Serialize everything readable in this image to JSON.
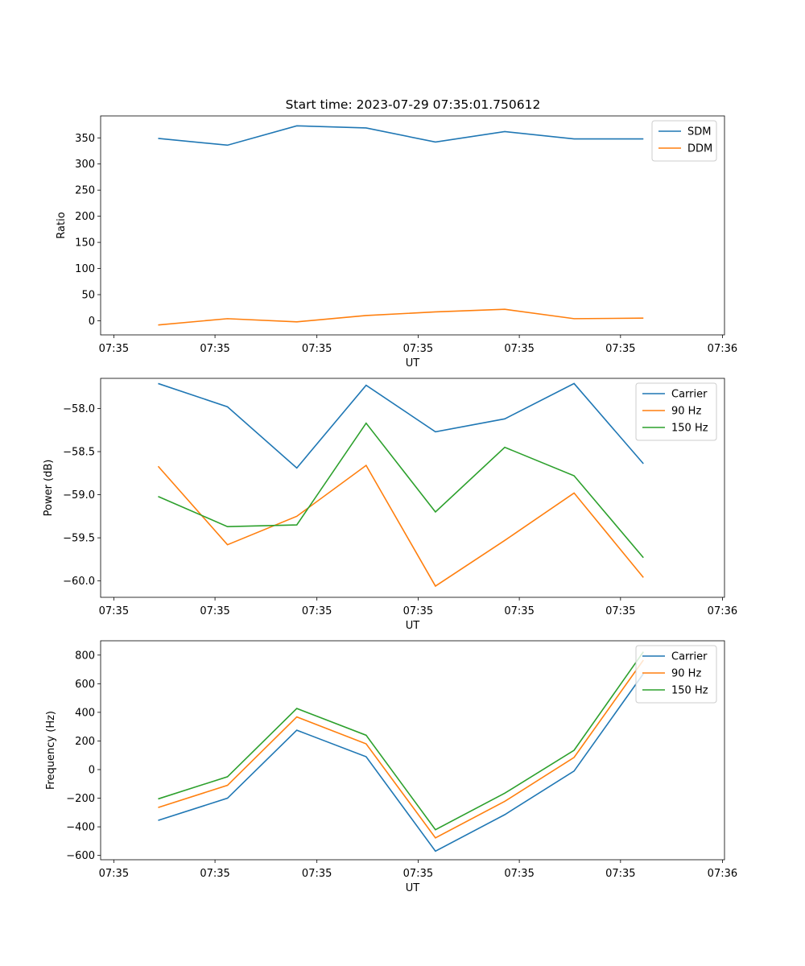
{
  "figure_title": "Start time: 2023-07-29 07:35:01.750612",
  "chart_data": [
    {
      "type": "line",
      "title": "Start time: 2023-07-29 07:35:01.750612",
      "xlabel": "UT",
      "ylabel": "Ratio",
      "x_index": [
        1,
        2,
        3,
        4,
        5,
        6,
        7,
        8
      ],
      "xlim": [
        0.17,
        9.17
      ],
      "xticks": [
        0.36,
        1.82,
        3.29,
        4.75,
        6.21,
        7.67,
        9.14
      ],
      "xtick_labels": [
        "07:35",
        "07:35",
        "07:35",
        "07:35",
        "07:35",
        "07:35",
        "07:36"
      ],
      "ylim": [
        -27,
        392
      ],
      "yticks": [
        0,
        50,
        100,
        150,
        200,
        250,
        300,
        350
      ],
      "ytick_labels": [
        "0",
        "50",
        "100",
        "150",
        "200",
        "250",
        "300",
        "350"
      ],
      "legend_position": "upper-right",
      "series": [
        {
          "name": "SDM",
          "color": "#1f77b4",
          "values": [
            349,
            336,
            373,
            369,
            342,
            362,
            348,
            348
          ]
        },
        {
          "name": "DDM",
          "color": "#ff7f0e",
          "values": [
            -8,
            4,
            -2,
            10,
            17,
            22,
            4,
            5
          ]
        }
      ]
    },
    {
      "type": "line",
      "title": "",
      "xlabel": "UT",
      "ylabel": "Power (dB)",
      "x_index": [
        1,
        2,
        3,
        4,
        5,
        6,
        7,
        8
      ],
      "xlim": [
        0.17,
        9.17
      ],
      "xticks": [
        0.36,
        1.82,
        3.29,
        4.75,
        6.21,
        7.67,
        9.14
      ],
      "xtick_labels": [
        "07:35",
        "07:35",
        "07:35",
        "07:35",
        "07:35",
        "07:35",
        "07:36"
      ],
      "ylim": [
        -60.19,
        -57.65
      ],
      "yticks": [
        -60.0,
        -59.5,
        -59.0,
        -58.5,
        -58.0
      ],
      "ytick_labels": [
        "−60.0",
        "−59.5",
        "−59.0",
        "−58.5",
        "−58.0"
      ],
      "legend_position": "upper-right",
      "series": [
        {
          "name": "Carrier",
          "color": "#1f77b4",
          "values": [
            -57.71,
            -57.98,
            -58.69,
            -57.73,
            -58.27,
            -58.12,
            -57.71,
            -58.64
          ]
        },
        {
          "name": "90 Hz",
          "color": "#ff7f0e",
          "values": [
            -58.67,
            -59.58,
            -59.25,
            -58.66,
            -60.06,
            -59.53,
            -58.98,
            -59.96
          ]
        },
        {
          "name": "150 Hz",
          "color": "#2ca02c",
          "values": [
            -59.02,
            -59.37,
            -59.35,
            -58.17,
            -59.2,
            -58.45,
            -58.78,
            -59.73
          ]
        }
      ]
    },
    {
      "type": "line",
      "title": "",
      "xlabel": "UT",
      "ylabel": "Frequency (Hz)",
      "x_index": [
        1,
        2,
        3,
        4,
        5,
        6,
        7,
        8
      ],
      "xlim": [
        0.17,
        9.17
      ],
      "xticks": [
        0.36,
        1.82,
        3.29,
        4.75,
        6.21,
        7.67,
        9.14
      ],
      "xtick_labels": [
        "07:35",
        "07:35",
        "07:35",
        "07:35",
        "07:35",
        "07:35",
        "07:36"
      ],
      "ylim": [
        -630,
        900
      ],
      "yticks": [
        -600,
        -400,
        -200,
        0,
        200,
        400,
        600,
        800
      ],
      "ytick_labels": [
        "−600",
        "−400",
        "−200",
        "0",
        "200",
        "400",
        "600",
        "800"
      ],
      "legend_position": "upper-right",
      "series": [
        {
          "name": "Carrier",
          "color": "#1f77b4",
          "values": [
            -355,
            -200,
            275,
            90,
            -570,
            -315,
            -10,
            670
          ]
        },
        {
          "name": "90 Hz",
          "color": "#ff7f0e",
          "values": [
            -265,
            -110,
            368,
            180,
            -477,
            -222,
            85,
            765
          ]
        },
        {
          "name": "150 Hz",
          "color": "#2ca02c",
          "values": [
            -205,
            -50,
            427,
            240,
            -420,
            -165,
            135,
            823
          ]
        }
      ]
    }
  ]
}
